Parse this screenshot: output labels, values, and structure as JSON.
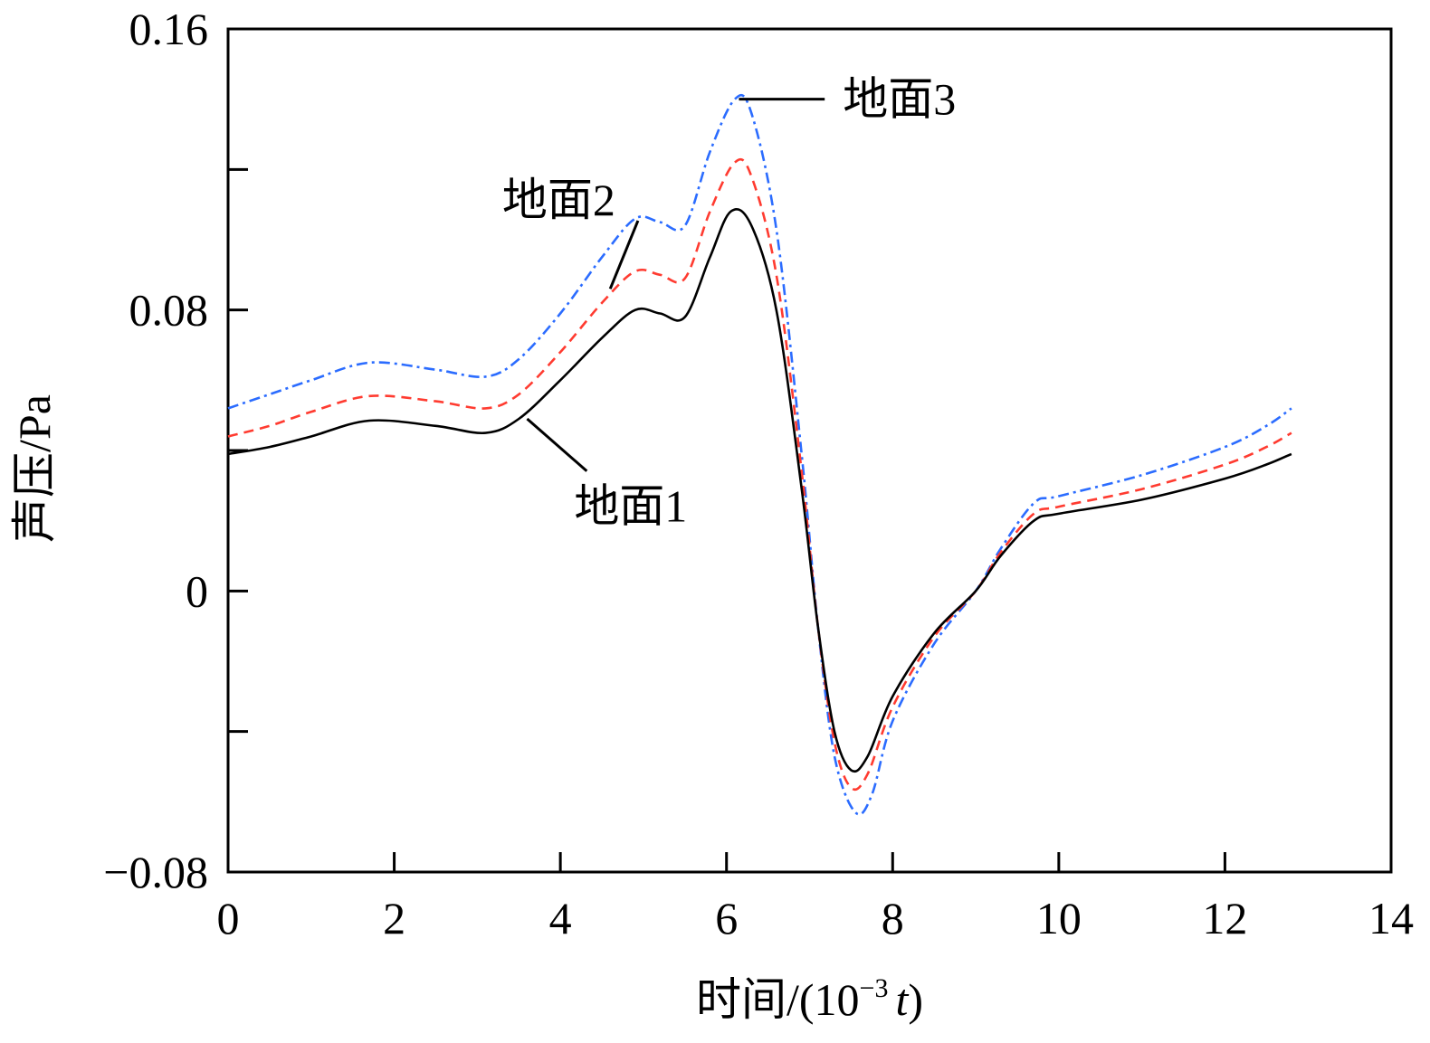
{
  "chart_data": {
    "type": "line",
    "title": "",
    "xlabel_main": "时间/(10",
    "xlabel_exp": "−3",
    "xlabel_var": "t",
    "xlabel_close": ")",
    "ylabel": "声压/Pa",
    "xlim": [
      0,
      14
    ],
    "ylim": [
      -0.08,
      0.16
    ],
    "x_ticks": [
      0,
      2,
      4,
      6,
      8,
      10,
      12,
      14
    ],
    "x_tick_labels": [
      "0",
      "2",
      "4",
      "6",
      "8",
      "10",
      "12",
      "14"
    ],
    "y_ticks": [
      -0.08,
      -0.04,
      0,
      0.04,
      0.08,
      0.12,
      0.16
    ],
    "y_tick_labels": [
      "−0.08",
      "",
      "0",
      "",
      "0.08",
      "",
      "0.16"
    ],
    "grid": false,
    "series": [
      {
        "name": "地面1",
        "color": "#000000",
        "dash": "solid",
        "points": [
          [
            0,
            0.039
          ],
          [
            0.5,
            0.041
          ],
          [
            1,
            0.044
          ],
          [
            1.7,
            0.0485
          ],
          [
            2.5,
            0.047
          ],
          [
            3.1,
            0.045
          ],
          [
            3.5,
            0.049
          ],
          [
            4,
            0.06
          ],
          [
            4.5,
            0.072
          ],
          [
            4.9,
            0.08
          ],
          [
            5.2,
            0.079
          ],
          [
            5.5,
            0.078
          ],
          [
            5.8,
            0.095
          ],
          [
            6.05,
            0.108
          ],
          [
            6.3,
            0.104
          ],
          [
            6.6,
            0.08
          ],
          [
            6.9,
            0.03
          ],
          [
            7.1,
            -0.01
          ],
          [
            7.3,
            -0.04
          ],
          [
            7.5,
            -0.051
          ],
          [
            7.7,
            -0.047
          ],
          [
            8,
            -0.03
          ],
          [
            8.5,
            -0.012
          ],
          [
            9,
            0
          ],
          [
            9.3,
            0.01
          ],
          [
            9.7,
            0.02
          ],
          [
            10,
            0.022
          ],
          [
            11,
            0.026
          ],
          [
            12,
            0.032
          ],
          [
            12.5,
            0.036
          ],
          [
            12.8,
            0.039
          ]
        ]
      },
      {
        "name": "地面2",
        "color": "#ff3b30",
        "dash": "dashed",
        "points": [
          [
            0,
            0.044
          ],
          [
            0.5,
            0.047
          ],
          [
            1,
            0.051
          ],
          [
            1.7,
            0.0555
          ],
          [
            2.5,
            0.054
          ],
          [
            3.1,
            0.052
          ],
          [
            3.5,
            0.056
          ],
          [
            4,
            0.068
          ],
          [
            4.5,
            0.082
          ],
          [
            4.9,
            0.091
          ],
          [
            5.2,
            0.09
          ],
          [
            5.5,
            0.089
          ],
          [
            5.8,
            0.108
          ],
          [
            6.1,
            0.122
          ],
          [
            6.3,
            0.118
          ],
          [
            6.6,
            0.09
          ],
          [
            6.9,
            0.035
          ],
          [
            7.1,
            -0.01
          ],
          [
            7.3,
            -0.043
          ],
          [
            7.5,
            -0.056
          ],
          [
            7.7,
            -0.052
          ],
          [
            8,
            -0.033
          ],
          [
            8.5,
            -0.013
          ],
          [
            9,
            0
          ],
          [
            9.3,
            0.011
          ],
          [
            9.7,
            0.022
          ],
          [
            10,
            0.024
          ],
          [
            11,
            0.029
          ],
          [
            12,
            0.036
          ],
          [
            12.5,
            0.041
          ],
          [
            12.8,
            0.045
          ]
        ]
      },
      {
        "name": "地面3",
        "color": "#2b6cff",
        "dash": "dashdot",
        "points": [
          [
            0,
            0.052
          ],
          [
            0.5,
            0.056
          ],
          [
            1,
            0.06
          ],
          [
            1.7,
            0.065
          ],
          [
            2.5,
            0.063
          ],
          [
            3.1,
            0.061
          ],
          [
            3.5,
            0.066
          ],
          [
            4,
            0.079
          ],
          [
            4.5,
            0.095
          ],
          [
            4.9,
            0.106
          ],
          [
            5.2,
            0.105
          ],
          [
            5.5,
            0.104
          ],
          [
            5.8,
            0.125
          ],
          [
            6.1,
            0.14
          ],
          [
            6.3,
            0.136
          ],
          [
            6.6,
            0.103
          ],
          [
            6.9,
            0.04
          ],
          [
            7.1,
            -0.01
          ],
          [
            7.3,
            -0.047
          ],
          [
            7.55,
            -0.063
          ],
          [
            7.75,
            -0.058
          ],
          [
            8,
            -0.037
          ],
          [
            8.5,
            -0.015
          ],
          [
            9,
            0
          ],
          [
            9.3,
            0.012
          ],
          [
            9.7,
            0.025
          ],
          [
            10,
            0.027
          ],
          [
            11,
            0.033
          ],
          [
            12,
            0.041
          ],
          [
            12.5,
            0.047
          ],
          [
            12.8,
            0.052
          ]
        ]
      }
    ],
    "annotations": [
      {
        "label": "地面1",
        "series": 0,
        "at": [
          3.6,
          0.049
        ],
        "text_pos": [
          4.1,
          0.029
        ]
      },
      {
        "label": "地面2",
        "series": 1,
        "at": [
          4.6,
          0.086
        ],
        "text_pos": [
          3.3,
          0.108
        ]
      },
      {
        "label": "地面3",
        "series": 2,
        "at": [
          6.15,
          0.14
        ],
        "text_pos": [
          7.4,
          0.14
        ]
      }
    ]
  }
}
